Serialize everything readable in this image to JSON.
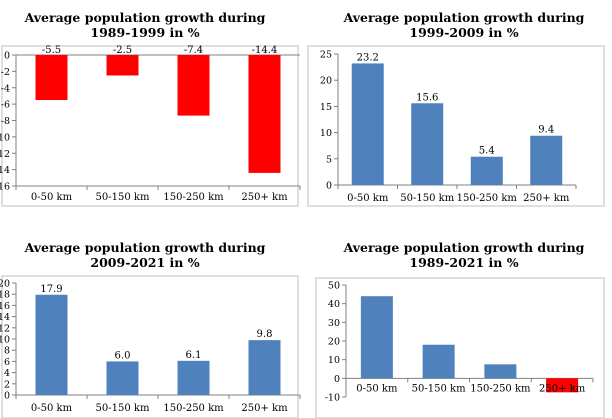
{
  "chart_data": [
    {
      "type": "bar",
      "title_line1": "Average population growth during",
      "title_line2": "1989-1999 in %",
      "categories": [
        "0-50 km",
        "50-150 km",
        "150-250 km",
        "250+ km"
      ],
      "values": [
        -5.5,
        -2.5,
        -7.4,
        -14.4
      ],
      "data_labels": [
        "-5.5",
        "-2.5",
        "-7.4",
        "-14.4"
      ],
      "ylim": [
        -16,
        0
      ],
      "yticks": [
        0,
        -2,
        -4,
        -6,
        -8,
        -10,
        -12,
        -14,
        -16
      ],
      "bar_colors": [
        "#ff0000",
        "#ff0000",
        "#ff0000",
        "#ff0000"
      ],
      "grid": false,
      "xlabel": "",
      "ylabel": ""
    },
    {
      "type": "bar",
      "title_line1": "Average population growth during",
      "title_line2": "1999-2009 in %",
      "categories": [
        "0-50 km",
        "50-150 km",
        "150-250 km",
        "250+ km"
      ],
      "values": [
        23.2,
        15.6,
        5.4,
        9.4
      ],
      "data_labels": [
        "23.2",
        "15.6",
        "5.4",
        "9.4"
      ],
      "ylim": [
        0,
        25
      ],
      "yticks": [
        0,
        5,
        10,
        15,
        20,
        25
      ],
      "bar_colors": [
        "#4f81bd",
        "#4f81bd",
        "#4f81bd",
        "#4f81bd"
      ],
      "grid": false,
      "xlabel": "",
      "ylabel": ""
    },
    {
      "type": "bar",
      "title_line1": "Average population growth during",
      "title_line2": "2009-2021 in %",
      "categories": [
        "0-50 km",
        "50-150 km",
        "150-250 km",
        "250+ km"
      ],
      "values": [
        17.9,
        6.0,
        6.1,
        9.8
      ],
      "data_labels": [
        "17.9",
        "6.0",
        "6.1",
        "9.8"
      ],
      "ylim": [
        0,
        20
      ],
      "yticks": [
        0,
        2,
        4,
        6,
        8,
        10,
        12,
        14,
        16,
        18,
        20
      ],
      "bar_colors": [
        "#4f81bd",
        "#4f81bd",
        "#4f81bd",
        "#4f81bd"
      ],
      "grid": false,
      "xlabel": "",
      "ylabel": ""
    },
    {
      "type": "bar",
      "title_line1": "Average population growth during",
      "title_line2": "1989-2021 in %",
      "categories": [
        "0-50 km",
        "50-150 km",
        "150-250 km",
        "250+ km"
      ],
      "values": [
        44,
        18,
        7.5,
        -7.5
      ],
      "data_labels": [],
      "ylim": [
        -10,
        50
      ],
      "yticks": [
        50,
        40,
        30,
        20,
        10,
        0,
        -10
      ],
      "bar_colors": [
        "#4f81bd",
        "#4f81bd",
        "#4f81bd",
        "#ff0000"
      ],
      "grid": false,
      "xlabel": "",
      "ylabel": ""
    }
  ]
}
